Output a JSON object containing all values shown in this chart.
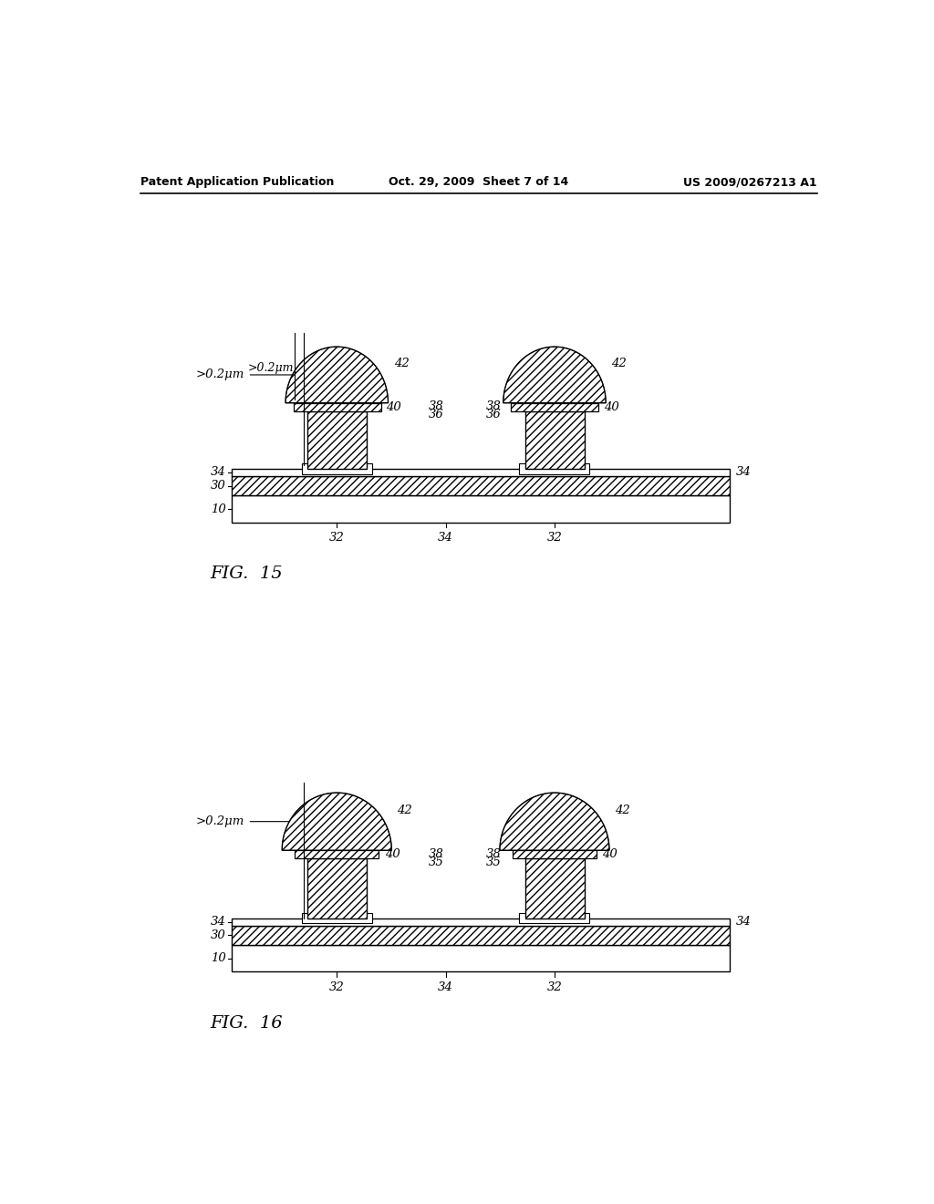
{
  "header_left": "Patent Application Publication",
  "header_mid": "Oct. 29, 2009  Sheet 7 of 14",
  "header_right": "US 2009/0267213 A1",
  "fig15_label": "FIG.  15",
  "fig16_label": "FIG.  16",
  "bg_color": "#ffffff"
}
